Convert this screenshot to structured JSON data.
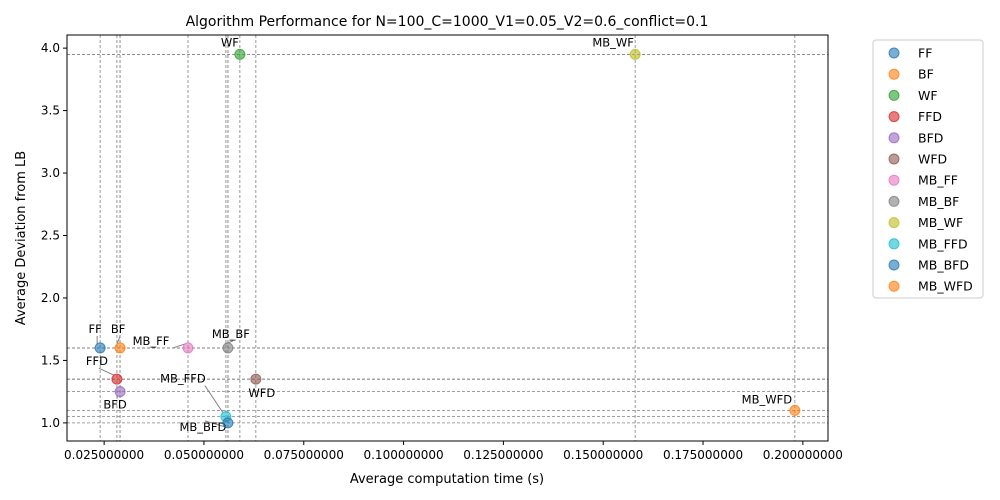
{
  "chart_data": {
    "type": "scatter",
    "title": "Algorithm Performance for N=100_C=1000_V1=0.05_V2=0.6_conflict=0.1",
    "xlabel": "Average computation time (s)",
    "ylabel": "Average Deviation from LB",
    "xlim": [
      0.0157,
      0.2063
    ],
    "ylim": [
      0.855,
      4.105
    ],
    "x_ticks": [
      {
        "value": 0.025,
        "label": "0.025000000"
      },
      {
        "value": 0.05,
        "label": "0.050000000"
      },
      {
        "value": 0.075,
        "label": "0.075000000"
      },
      {
        "value": 0.1,
        "label": "0.100000000"
      },
      {
        "value": 0.125,
        "label": "0.125000000"
      },
      {
        "value": 0.15,
        "label": "0.150000000"
      },
      {
        "value": 0.175,
        "label": "0.175000000"
      },
      {
        "value": 0.2,
        "label": "0.200000000"
      }
    ],
    "y_ticks": [
      {
        "value": 1.0,
        "label": "1.0"
      },
      {
        "value": 1.5,
        "label": "1.5"
      },
      {
        "value": 2.0,
        "label": "2.0"
      },
      {
        "value": 2.5,
        "label": "2.5"
      },
      {
        "value": 3.0,
        "label": "3.0"
      },
      {
        "value": 3.5,
        "label": "3.5"
      },
      {
        "value": 4.0,
        "label": "4.0"
      }
    ],
    "legend_position": "outside-right",
    "series": [
      {
        "name": "FF",
        "x": 0.024,
        "y": 1.6,
        "color": "#1f77b4",
        "label": "FF",
        "arrow": true
      },
      {
        "name": "BF",
        "x": 0.029,
        "y": 1.6,
        "color": "#ff7f0e",
        "label": "BF",
        "arrow": true
      },
      {
        "name": "WF",
        "x": 0.059,
        "y": 3.95,
        "color": "#2ca02c",
        "label": "WF",
        "arrow": false
      },
      {
        "name": "FFD",
        "x": 0.0282,
        "y": 1.35,
        "color": "#d62728",
        "label": "FFD",
        "arrow": true
      },
      {
        "name": "BFD",
        "x": 0.029,
        "y": 1.25,
        "color": "#9467bd",
        "label": "BFD",
        "arrow": true
      },
      {
        "name": "WFD",
        "x": 0.063,
        "y": 1.35,
        "color": "#8c564b",
        "label": "WFD",
        "arrow": false
      },
      {
        "name": "MB_FF",
        "x": 0.046,
        "y": 1.6,
        "color": "#e377c2",
        "label": "MB_FF",
        "arrow": true
      },
      {
        "name": "MB_BF",
        "x": 0.056,
        "y": 1.6,
        "color": "#7f7f7f",
        "label": "MB_BF",
        "arrow": true
      },
      {
        "name": "MB_WF",
        "x": 0.158,
        "y": 3.95,
        "color": "#bcbd22",
        "label": "MB_WF",
        "arrow": false
      },
      {
        "name": "MB_FFD",
        "x": 0.0555,
        "y": 1.05,
        "color": "#17becf",
        "label": "MB_FFD",
        "arrow": true
      },
      {
        "name": "MB_BFD",
        "x": 0.056,
        "y": 1.0,
        "color": "#1f77b4",
        "label": "MB_BFD",
        "arrow": true
      },
      {
        "name": "MB_WFD",
        "x": 0.198,
        "y": 1.1,
        "color": "#ff7f0e",
        "label": "MB_WFD",
        "arrow": false
      }
    ]
  }
}
